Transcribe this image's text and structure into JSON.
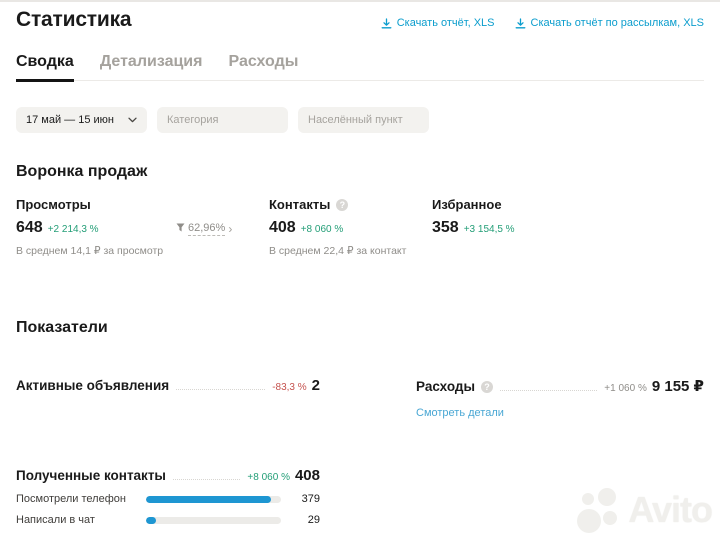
{
  "page": {
    "title": "Статистика",
    "watermark": "Avito"
  },
  "header": {
    "links": [
      {
        "label": "Скачать отчёт, XLS"
      },
      {
        "label": "Скачать отчёт по рассылкам, XLS"
      }
    ]
  },
  "tabs": [
    {
      "label": "Сводка",
      "active": true
    },
    {
      "label": "Детализация",
      "active": false
    },
    {
      "label": "Расходы",
      "active": false
    }
  ],
  "filters": {
    "period": "17 май — 15 июн",
    "category_placeholder": "Категория",
    "location_placeholder": "Населённый пункт"
  },
  "funnel": {
    "title": "Воронка продаж",
    "conversion": "62,96%",
    "conversion_arrow": "›",
    "metrics": [
      {
        "label": "Просмотры",
        "value": "648",
        "change": "+2 214,3 %",
        "note": "В среднем 14,1 ₽ за просмотр"
      },
      {
        "label": "Контакты",
        "value": "408",
        "change": "+8 060 %",
        "note": "В среднем 22,4 ₽ за контакт"
      },
      {
        "label": "Избранное",
        "value": "358",
        "change": "+3 154,5 %"
      }
    ],
    "help_glyph": "?"
  },
  "indicators": {
    "title": "Показатели",
    "active_ads": {
      "label": "Активные объявления",
      "change": "-83,3 %",
      "value": "2"
    },
    "expenses": {
      "label": "Расходы",
      "change": "+1 060 %",
      "value": "9 155 ₽",
      "details_link": "Смотреть детали",
      "help_glyph": "?"
    }
  },
  "contacts": {
    "label": "Полученные контакты",
    "change": "+8 060 %",
    "value": "408",
    "bar_max": 408,
    "rows": [
      {
        "label": "Посмотрели телефон",
        "value": 379
      },
      {
        "label": "Написали в чат",
        "value": 29
      }
    ]
  },
  "colors": {
    "link_blue": "#0b9dcd",
    "light_blue": "#49a7d4",
    "positive_green": "#239e77",
    "negative_red": "#c5524e",
    "bar_blue": "#1e96d2"
  }
}
